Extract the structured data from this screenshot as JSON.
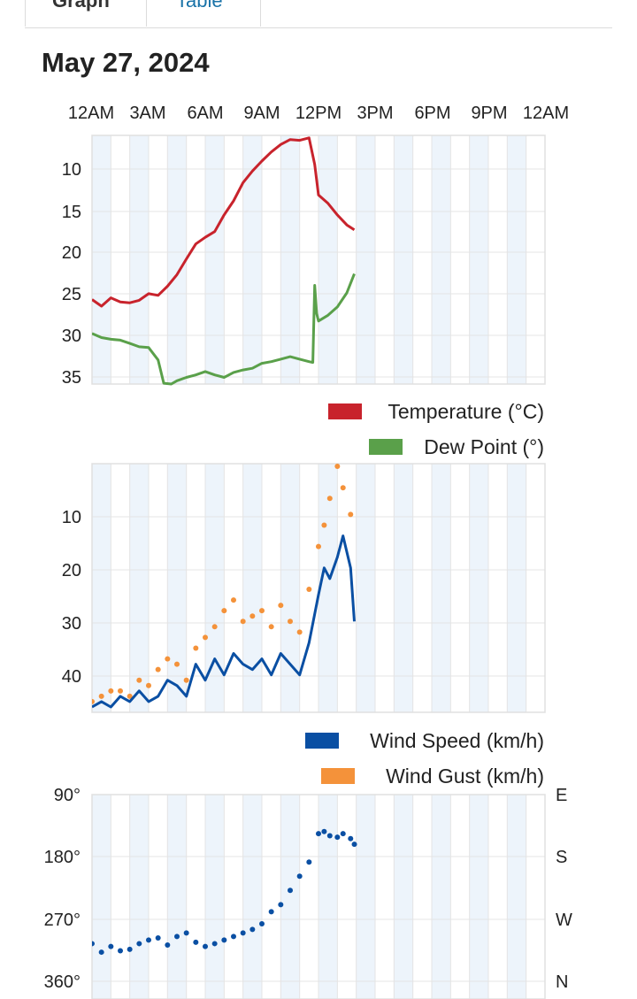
{
  "tabs": [
    {
      "label": "Graph",
      "active": true
    },
    {
      "label": "Table",
      "active": false
    }
  ],
  "date_title": "May 27, 2024",
  "time_axis_labels": [
    "12AM",
    "3AM",
    "6AM",
    "9AM",
    "12PM",
    "3PM",
    "6PM",
    "9PM",
    "12AM"
  ],
  "colors": {
    "temperature": "#c8232c",
    "dew_point": "#5aa04a",
    "wind_speed": "#0a4fa3",
    "wind_gust": "#f4923a",
    "wind_direction": "#0a4fa3",
    "band": "#edf4fb",
    "grid": "#e4e4e4"
  },
  "chart_data": [
    {
      "type": "line",
      "x_unit": "hour of day",
      "xlim": [
        0,
        24
      ],
      "yticks": [
        10,
        15,
        20,
        25,
        30,
        35
      ],
      "ylim": [
        9.5,
        39.5
      ],
      "legend_position": "bottom-right",
      "series": [
        {
          "name": "Temperature (°C)",
          "x": [
            0,
            0.5,
            1,
            1.5,
            2,
            2.5,
            3,
            3.5,
            4,
            4.5,
            5,
            5.5,
            6,
            6.5,
            7,
            7.5,
            8,
            8.5,
            9,
            9.5,
            10,
            10.5,
            11,
            11.5,
            11.8,
            12.0,
            12.5,
            13,
            13.5,
            13.9
          ],
          "y": [
            19.7,
            18.9,
            19.9,
            19.4,
            19.3,
            19.6,
            20.4,
            20.2,
            21.3,
            22.7,
            24.6,
            26.4,
            27.2,
            27.9,
            29.9,
            31.6,
            33.8,
            35.2,
            36.4,
            37.5,
            38.4,
            39.0,
            38.9,
            39.2,
            36.0,
            32.3,
            31.3,
            29.9,
            28.7,
            28.1
          ]
        },
        {
          "name": "Dew Point (°)",
          "x": [
            0,
            0.5,
            1,
            1.5,
            2,
            2.5,
            3,
            3.5,
            3.8,
            4.2,
            4.5,
            5,
            5.5,
            6,
            6.5,
            7,
            7.5,
            8,
            8.5,
            9,
            9.5,
            10,
            10.5,
            11,
            11.5,
            11.7,
            11.8,
            11.9,
            12.0,
            12.5,
            13,
            13.5,
            13.9
          ],
          "y": [
            15.6,
            15.1,
            14.9,
            14.8,
            14.4,
            14.0,
            13.9,
            12.4,
            9.6,
            9.5,
            9.9,
            10.3,
            10.6,
            11.0,
            10.6,
            10.3,
            10.9,
            11.2,
            11.4,
            12.0,
            12.2,
            12.5,
            12.8,
            12.5,
            12.2,
            12.1,
            21.4,
            18.0,
            17.1,
            17.8,
            18.8,
            20.5,
            22.8
          ]
        }
      ]
    },
    {
      "type": "line",
      "x_unit": "hour of day",
      "xlim": [
        0,
        24
      ],
      "yticks": [
        10,
        20,
        30,
        40
      ],
      "ylim": [
        3,
        49.5
      ],
      "legend_position": "bottom-right",
      "series": [
        {
          "name": "Wind Speed (km/h)",
          "x": [
            0,
            0.5,
            1,
            1.5,
            2,
            2.5,
            3,
            3.5,
            4,
            4.5,
            5,
            5.5,
            6,
            6.5,
            7,
            7.5,
            8,
            8.5,
            9,
            9.5,
            10,
            10.5,
            11,
            11.5,
            12,
            12.3,
            12.6,
            13,
            13.3,
            13.7,
            13.9
          ],
          "y": [
            4,
            5,
            4,
            6,
            5,
            7,
            5,
            6,
            9,
            8,
            6,
            12,
            9,
            13,
            10,
            14,
            12,
            11,
            13,
            10,
            14,
            12,
            10,
            16,
            25,
            30,
            28,
            32,
            36,
            30,
            20
          ]
        },
        {
          "name": "Wind Gust (km/h)",
          "x": [
            0,
            0.5,
            1,
            1.5,
            2,
            2.5,
            3,
            3.5,
            4,
            4.5,
            5,
            5.5,
            6,
            6.5,
            7,
            7.5,
            8,
            8.5,
            9,
            9.5,
            10,
            10.5,
            11,
            11.5,
            12,
            12.3,
            12.6,
            13,
            13.3,
            13.7
          ],
          "y": [
            5,
            6,
            7,
            7,
            6,
            9,
            8,
            11,
            13,
            12,
            9,
            15,
            17,
            19,
            22,
            24,
            20,
            21,
            22,
            19,
            23,
            20,
            18,
            26,
            34,
            38,
            43,
            49,
            45,
            40
          ]
        }
      ]
    },
    {
      "type": "scatter",
      "x_unit": "hour of day",
      "xlim": [
        0,
        24
      ],
      "yticks": [
        90,
        180,
        270,
        360
      ],
      "ytick_labels": [
        "90°",
        "180°",
        "270°",
        "360°"
      ],
      "ylim": [
        72,
        360
      ],
      "right_axis_labels": [
        "E",
        "S",
        "W",
        "N"
      ],
      "series": [
        {
          "name": "Wind direction",
          "x": [
            0,
            0.5,
            1,
            1.5,
            2,
            2.5,
            3,
            3.5,
            4,
            4.5,
            5,
            5.5,
            6,
            6.5,
            7,
            7.5,
            8,
            8.5,
            9,
            9.5,
            10,
            10.5,
            11,
            11.5,
            12,
            12.3,
            12.6,
            13,
            13.3,
            13.7,
            13.9
          ],
          "y": [
            150,
            138,
            146,
            140,
            142,
            150,
            155,
            158,
            148,
            160,
            165,
            152,
            146,
            150,
            155,
            160,
            165,
            170,
            178,
            195,
            205,
            225,
            245,
            265,
            305,
            308,
            302,
            300,
            305,
            298,
            290
          ]
        }
      ]
    }
  ]
}
